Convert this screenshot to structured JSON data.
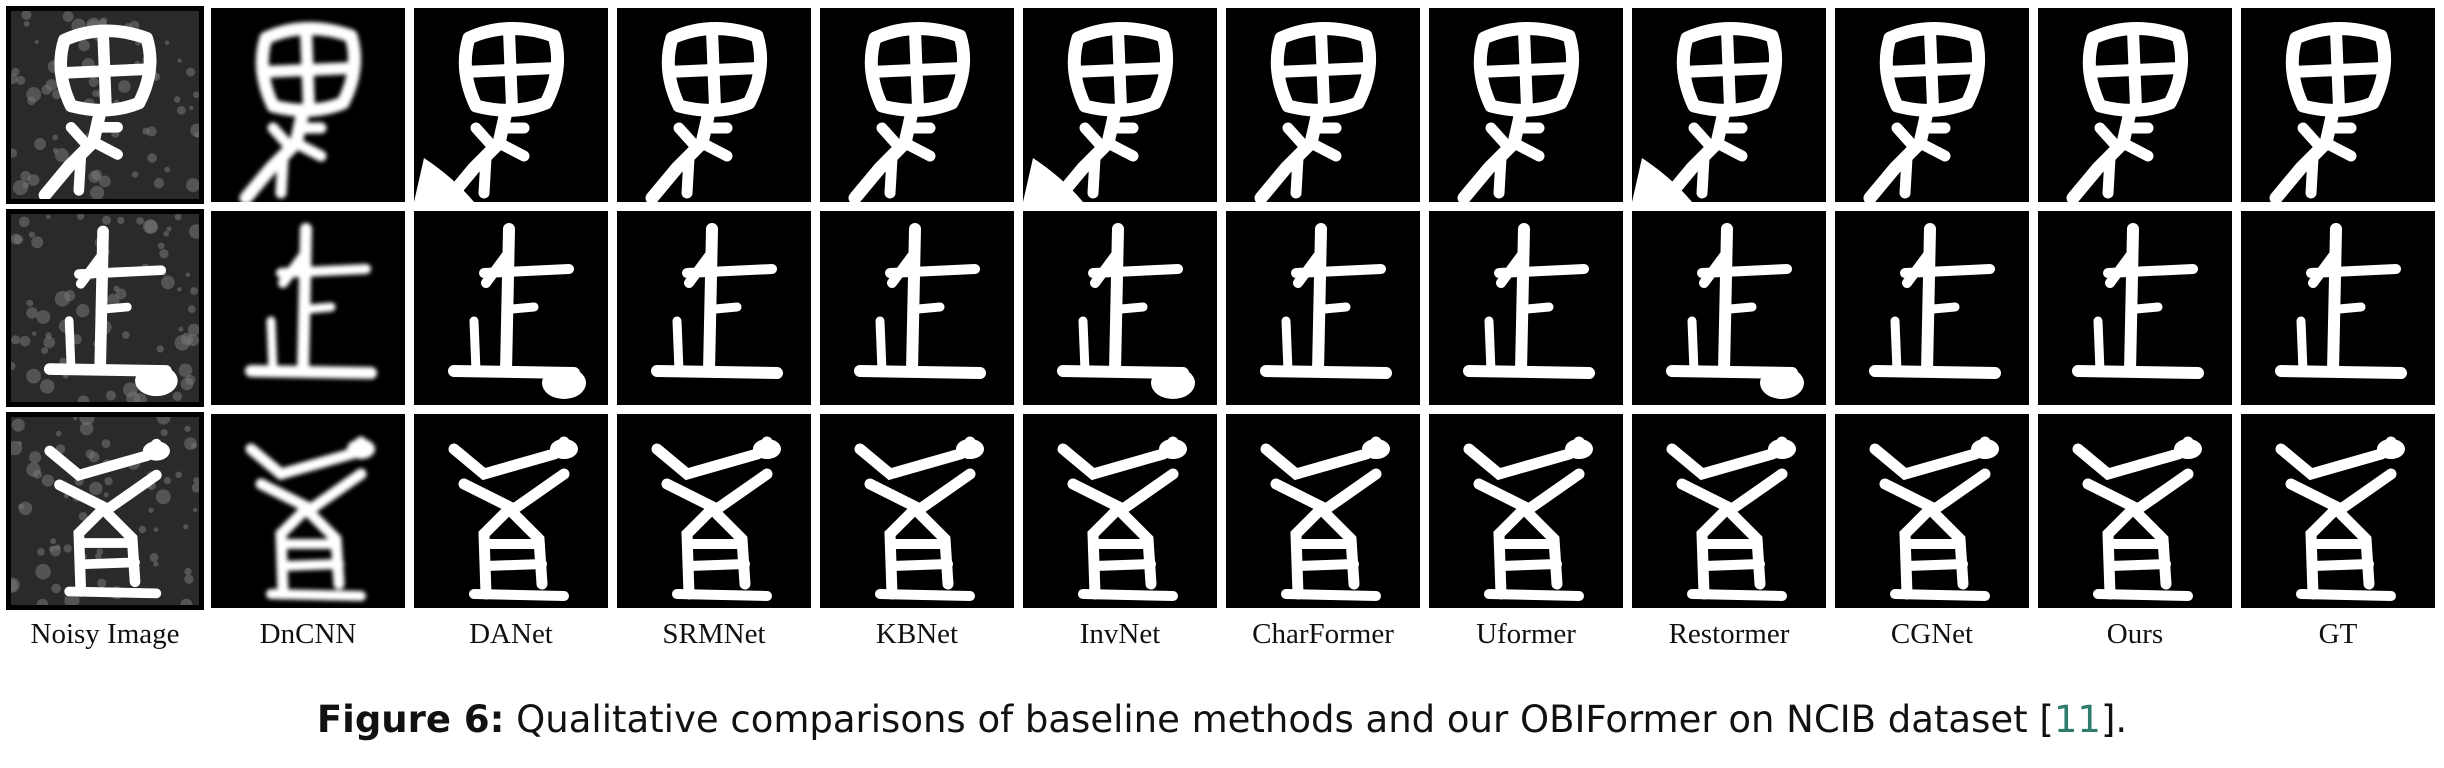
{
  "figure": {
    "methods": [
      "Noisy Image",
      "DnCNN",
      "DANet",
      "SRMNet",
      "KBNet",
      "InvNet",
      "CharFormer",
      "Uformer",
      "Restormer",
      "CGNet",
      "Ours",
      "GT"
    ],
    "rows": 3,
    "caption": {
      "label": "Figure 6:",
      "text": " Qualitative comparisons of baseline methods and our OBIFormer on NCIB dataset [",
      "ref": "11",
      "end": "]."
    },
    "colors": {
      "background": "#000000",
      "glyph": "#ffffff",
      "noisy_bg": "#1a1a1a",
      "ref_link": "#2e7d6a"
    }
  }
}
